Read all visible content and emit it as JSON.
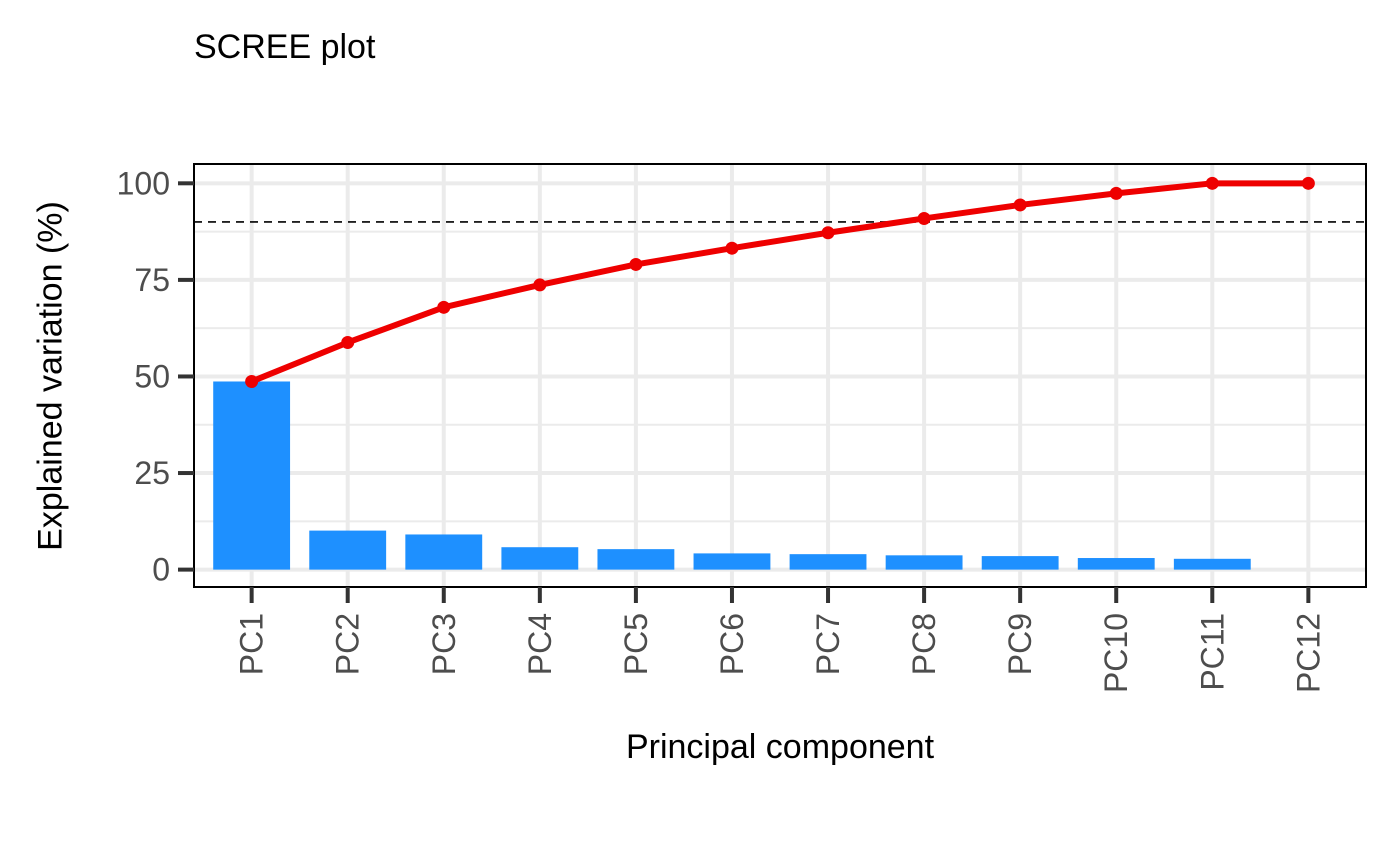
{
  "chart_data": {
    "type": "bar",
    "title": "SCREE plot",
    "xlabel": "Principal component",
    "ylabel": "Explained variation (%)",
    "categories": [
      "PC1",
      "PC2",
      "PC3",
      "PC4",
      "PC5",
      "PC6",
      "PC7",
      "PC8",
      "PC9",
      "PC10",
      "PC11",
      "PC12"
    ],
    "series": [
      {
        "type": "bar",
        "values": [
          48.7,
          10.1,
          9.1,
          5.8,
          5.3,
          4.2,
          4.0,
          3.7,
          3.5,
          3.0,
          2.8,
          0.0
        ],
        "color": "#1E90FF"
      },
      {
        "type": "line",
        "values": [
          48.7,
          58.8,
          67.9,
          73.7,
          79.0,
          83.2,
          87.2,
          90.9,
          94.4,
          97.4,
          100.0,
          100.0
        ],
        "color": "#EE0000"
      }
    ],
    "reference_line": {
      "y": 90,
      "style": "dashed",
      "color": "#000000"
    },
    "ylim": [
      -4.5,
      105
    ],
    "yticks": [
      0,
      25,
      50,
      75,
      100
    ],
    "grid": true,
    "legend": "none"
  }
}
